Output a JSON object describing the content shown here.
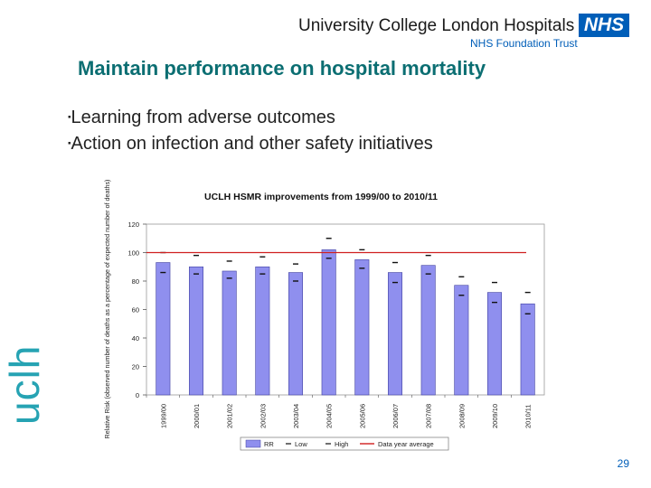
{
  "header": {
    "org_name": "University College London Hospitals",
    "nhs_logo": "NHS",
    "trust_name": "NHS Foundation Trust"
  },
  "slide": {
    "title": "Maintain performance on hospital mortality",
    "bullets": [
      "Learning from adverse outcomes",
      "Action on infection and other safety initiatives"
    ],
    "bullet_glyph": "▪",
    "side_logo": "uclh",
    "page_number": "29"
  },
  "colors": {
    "title": "#0b6e72",
    "bar": "#8f8fee",
    "bar_stroke": "#4040a0",
    "avg_line": "#d02020",
    "brand_blue": "#005eb8"
  },
  "chart_data": {
    "type": "bar",
    "title": "UCLH HSMR improvements from 1999/00 to 2010/11",
    "ylabel": "Relative Risk (observed number of deaths as a percentage of expected number of deaths)",
    "xlabel": "",
    "ylim": [
      0,
      120
    ],
    "yticks": [
      0,
      20,
      40,
      60,
      80,
      100,
      120
    ],
    "categories": [
      "1999/00",
      "2000/01",
      "2001/02",
      "2002/03",
      "2003/04",
      "2004/05",
      "2005/06",
      "2006/07",
      "2007/08",
      "2008/09",
      "2009/10",
      "2010/11"
    ],
    "series": [
      {
        "name": "RR",
        "kind": "bar",
        "values": [
          93,
          90,
          87,
          90,
          86,
          102,
          95,
          86,
          91,
          77,
          72,
          64
        ]
      },
      {
        "name": "Low",
        "kind": "marker",
        "values": [
          86,
          85,
          82,
          85,
          80,
          96,
          89,
          79,
          85,
          70,
          65,
          57
        ]
      },
      {
        "name": "High",
        "kind": "marker",
        "values": [
          100,
          98,
          94,
          97,
          92,
          110,
          102,
          93,
          98,
          83,
          79,
          72
        ]
      },
      {
        "name": "Data year average",
        "kind": "line",
        "value": 100
      }
    ],
    "legend": [
      "RR",
      "Low",
      "High",
      "Data year average"
    ],
    "legend_position": "bottom"
  }
}
